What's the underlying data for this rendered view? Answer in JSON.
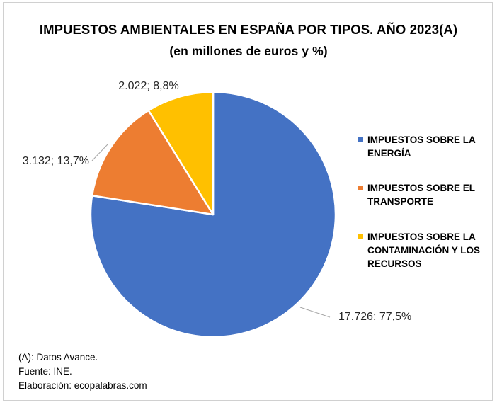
{
  "chart_data": {
    "type": "pie",
    "title": "IMPUESTOS AMBIENTALES EN ESPAÑA POR TIPOS. AÑO 2023(A)",
    "subtitle": "(en millones de euros y %)",
    "categories": [
      "IMPUESTOS SOBRE LA ENERGÍA",
      "IMPUESTOS SOBRE EL TRANSPORTE",
      "IMPUESTOS SOBRE LA CONTAMINACIÓN Y LOS RECURSOS"
    ],
    "values": [
      17726,
      3132,
      2022
    ],
    "percentages": [
      77.5,
      13.7,
      8.8
    ],
    "data_labels": [
      "17.726; 77,5%",
      "3.132; 13,7%",
      "2.022; 8,8%"
    ],
    "colors": [
      "#4472C4",
      "#ED7D31",
      "#FFC000"
    ],
    "legend_position": "right",
    "legend_lines": [
      [
        "IMPUESTOS SOBRE LA",
        "ENERGÍA"
      ],
      [
        "IMPUESTOS SOBRE EL",
        "TRANSPORTE"
      ],
      [
        "IMPUESTOS SOBRE LA",
        "CONTAMINACIÓN Y LOS",
        "RECURSOS"
      ]
    ]
  },
  "notes": {
    "line1": "(A): Datos Avance.",
    "line2": "Fuente: INE.",
    "line3": "Elaboración: ecopalabras.com"
  }
}
